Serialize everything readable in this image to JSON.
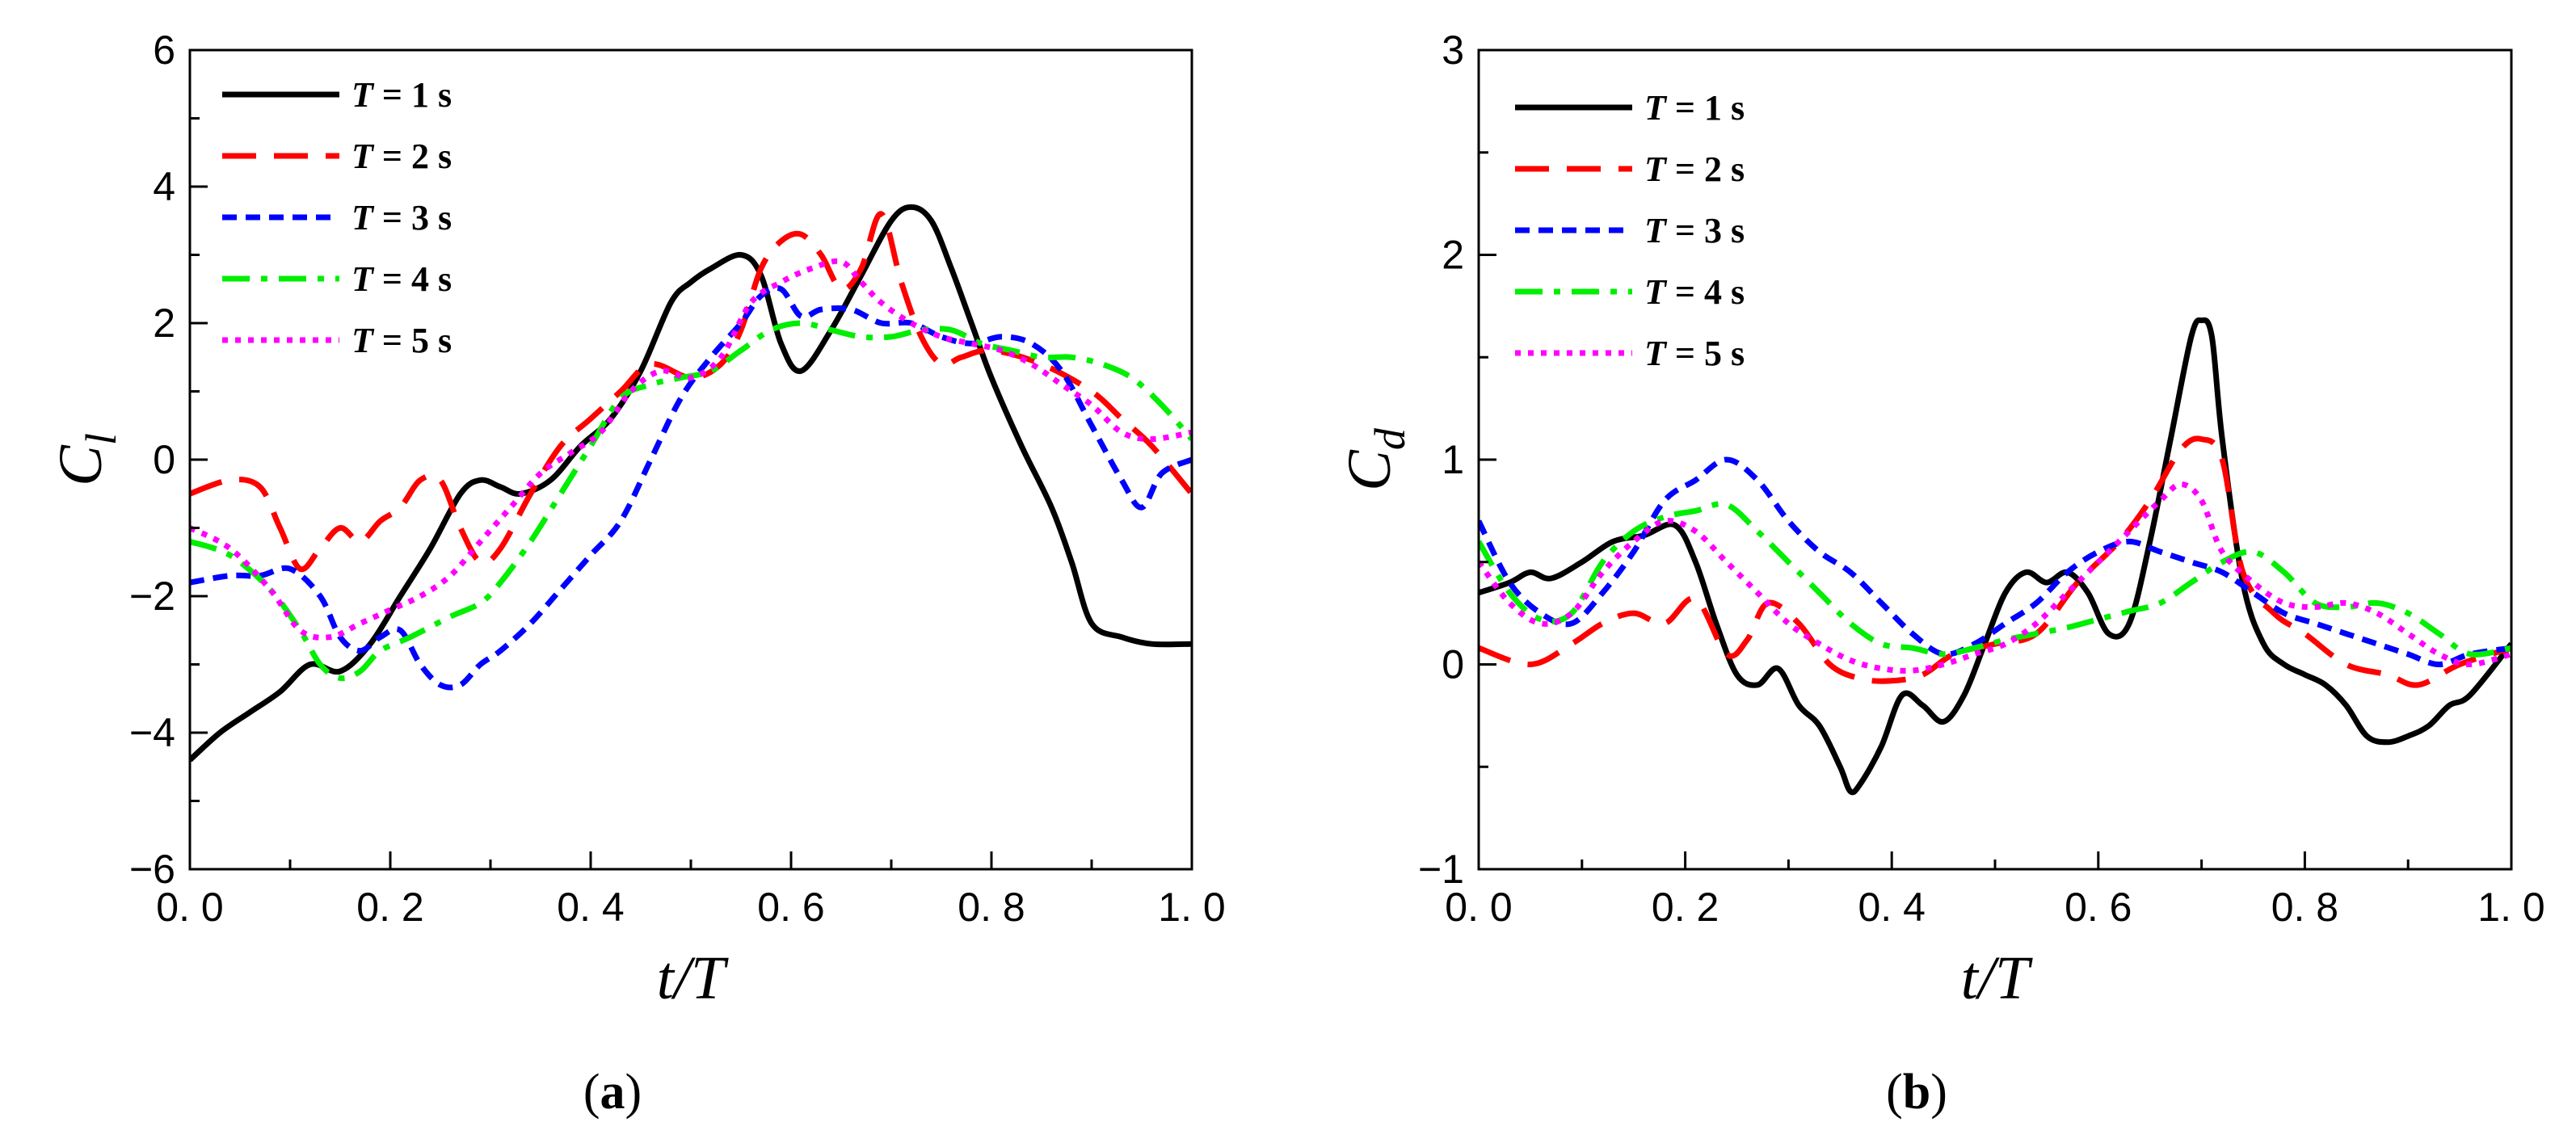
{
  "chart_data": [
    {
      "id": "a",
      "type": "line",
      "panel_label": "a",
      "xlabel": "t/T",
      "ylabel": "C",
      "ylabel_sub": "l",
      "xlim": [
        0.0,
        1.0
      ],
      "ylim": [
        -6,
        6
      ],
      "xticks": [
        0.0,
        0.2,
        0.4,
        0.6,
        0.8,
        1.0
      ],
      "xtick_labels": [
        "0. 0",
        "0. 2",
        "0. 4",
        "0. 6",
        "0. 8",
        "1. 0"
      ],
      "yticks": [
        -6,
        -4,
        -2,
        0,
        2,
        4,
        6
      ],
      "ytick_labels": [
        "−6",
        "−4",
        "−2",
        "0",
        "2",
        "4",
        "6"
      ],
      "legend_position": "top-left",
      "series": [
        {
          "name": "T = 1 s",
          "color": "#000000",
          "dash": "solid",
          "x": [
            0.0,
            0.03,
            0.06,
            0.09,
            0.12,
            0.15,
            0.18,
            0.21,
            0.24,
            0.27,
            0.29,
            0.31,
            0.33,
            0.36,
            0.39,
            0.42,
            0.45,
            0.48,
            0.5,
            0.52,
            0.55,
            0.57,
            0.59,
            0.61,
            0.64,
            0.67,
            0.7,
            0.72,
            0.74,
            0.76,
            0.78,
            0.8,
            0.83,
            0.86,
            0.88,
            0.9,
            0.93,
            0.96,
            1.0
          ],
          "y": [
            -4.4,
            -4.0,
            -3.7,
            -3.4,
            -3.0,
            -3.1,
            -2.7,
            -2.0,
            -1.3,
            -0.5,
            -0.3,
            -0.4,
            -0.5,
            -0.3,
            0.2,
            0.6,
            1.3,
            2.3,
            2.6,
            2.8,
            3.0,
            2.7,
            1.7,
            1.3,
            1.9,
            2.7,
            3.5,
            3.7,
            3.5,
            2.8,
            2.0,
            1.2,
            0.2,
            -0.7,
            -1.5,
            -2.4,
            -2.6,
            -2.7,
            -2.7
          ]
        },
        {
          "name": "T = 2 s",
          "color": "#ff0000",
          "dash": "dashed",
          "x": [
            0.0,
            0.04,
            0.07,
            0.09,
            0.11,
            0.13,
            0.15,
            0.17,
            0.19,
            0.21,
            0.23,
            0.25,
            0.27,
            0.29,
            0.31,
            0.34,
            0.37,
            0.4,
            0.43,
            0.46,
            0.5,
            0.53,
            0.55,
            0.57,
            0.59,
            0.61,
            0.63,
            0.65,
            0.67,
            0.69,
            0.71,
            0.73,
            0.75,
            0.77,
            0.8,
            0.85,
            0.9,
            0.93,
            0.96,
            1.0
          ],
          "y": [
            -0.5,
            -0.3,
            -0.4,
            -1.0,
            -1.6,
            -1.3,
            -1.0,
            -1.2,
            -0.9,
            -0.7,
            -0.3,
            -0.3,
            -1.0,
            -1.5,
            -1.3,
            -0.5,
            0.2,
            0.6,
            1.0,
            1.4,
            1.2,
            1.4,
            1.9,
            2.8,
            3.2,
            3.3,
            3.0,
            2.5,
            2.8,
            3.6,
            2.6,
            1.8,
            1.4,
            1.5,
            1.6,
            1.4,
            1.0,
            0.6,
            0.2,
            -0.5
          ]
        },
        {
          "name": "T = 3 s",
          "color": "#0000ff",
          "dash": "short-dash",
          "x": [
            0.0,
            0.04,
            0.07,
            0.1,
            0.13,
            0.15,
            0.17,
            0.19,
            0.21,
            0.23,
            0.25,
            0.27,
            0.29,
            0.31,
            0.34,
            0.37,
            0.4,
            0.43,
            0.46,
            0.49,
            0.52,
            0.55,
            0.57,
            0.59,
            0.61,
            0.63,
            0.66,
            0.69,
            0.72,
            0.75,
            0.78,
            0.81,
            0.84,
            0.87,
            0.9,
            0.93,
            0.95,
            0.97,
            1.0
          ],
          "y": [
            -1.8,
            -1.7,
            -1.7,
            -1.6,
            -2.0,
            -2.6,
            -2.8,
            -2.6,
            -2.5,
            -3.0,
            -3.3,
            -3.3,
            -3.0,
            -2.8,
            -2.4,
            -1.9,
            -1.4,
            -0.9,
            0.0,
            0.9,
            1.5,
            2.0,
            2.4,
            2.5,
            2.1,
            2.2,
            2.2,
            2.0,
            2.0,
            1.8,
            1.7,
            1.8,
            1.7,
            1.3,
            0.5,
            -0.3,
            -0.7,
            -0.2,
            0.0
          ]
        },
        {
          "name": "T = 4 s",
          "color": "#00ee00",
          "dash": "dash-dot",
          "x": [
            0.0,
            0.04,
            0.08,
            0.11,
            0.13,
            0.15,
            0.17,
            0.19,
            0.22,
            0.26,
            0.29,
            0.31,
            0.34,
            0.37,
            0.4,
            0.43,
            0.46,
            0.49,
            0.52,
            0.55,
            0.58,
            0.61,
            0.64,
            0.67,
            0.7,
            0.73,
            0.76,
            0.79,
            0.82,
            0.85,
            0.88,
            0.91,
            0.94,
            0.97,
            1.0
          ],
          "y": [
            -1.2,
            -1.4,
            -1.9,
            -2.5,
            -3.0,
            -3.2,
            -3.1,
            -2.8,
            -2.6,
            -2.3,
            -2.1,
            -1.8,
            -1.2,
            -0.5,
            0.2,
            0.9,
            1.1,
            1.2,
            1.3,
            1.6,
            1.9,
            2.0,
            1.9,
            1.8,
            1.8,
            1.9,
            1.9,
            1.7,
            1.6,
            1.5,
            1.5,
            1.4,
            1.2,
            0.8,
            0.3
          ]
        },
        {
          "name": "T = 5 s",
          "color": "#ff00ff",
          "dash": "dotted",
          "x": [
            0.0,
            0.04,
            0.08,
            0.11,
            0.14,
            0.17,
            0.2,
            0.23,
            0.26,
            0.29,
            0.32,
            0.35,
            0.38,
            0.41,
            0.44,
            0.47,
            0.5,
            0.53,
            0.56,
            0.59,
            0.62,
            0.65,
            0.67,
            0.69,
            0.72,
            0.75,
            0.78,
            0.81,
            0.84,
            0.87,
            0.9,
            0.93,
            0.96,
            1.0
          ],
          "y": [
            -1.0,
            -1.3,
            -1.9,
            -2.5,
            -2.6,
            -2.4,
            -2.2,
            -2.0,
            -1.7,
            -1.2,
            -0.7,
            -0.2,
            0.1,
            0.4,
            1.0,
            1.3,
            1.2,
            1.5,
            2.3,
            2.6,
            2.8,
            2.9,
            2.6,
            2.3,
            2.0,
            1.8,
            1.7,
            1.6,
            1.4,
            1.1,
            0.8,
            0.4,
            0.3,
            0.4
          ]
        }
      ]
    },
    {
      "id": "b",
      "type": "line",
      "panel_label": "b",
      "xlabel": "t/T",
      "ylabel": "C",
      "ylabel_sub": "d",
      "xlim": [
        0.0,
        1.0
      ],
      "ylim": [
        -1,
        3
      ],
      "xticks": [
        0.0,
        0.2,
        0.4,
        0.6,
        0.8,
        1.0
      ],
      "xtick_labels": [
        "0. 0",
        "0. 2",
        "0. 4",
        "0. 6",
        "0. 8",
        "1. 0"
      ],
      "yticks": [
        -1,
        0,
        1,
        2,
        3
      ],
      "ytick_labels": [
        "−1",
        "0",
        "1",
        "2",
        "3"
      ],
      "legend_position": "top-left",
      "series": [
        {
          "name": "T = 1 s",
          "color": "#000000",
          "dash": "solid",
          "x": [
            0.0,
            0.03,
            0.05,
            0.07,
            0.1,
            0.13,
            0.16,
            0.19,
            0.21,
            0.23,
            0.25,
            0.27,
            0.29,
            0.31,
            0.33,
            0.35,
            0.36,
            0.37,
            0.39,
            0.41,
            0.43,
            0.45,
            0.47,
            0.49,
            0.51,
            0.53,
            0.55,
            0.57,
            0.59,
            0.61,
            0.63,
            0.65,
            0.67,
            0.69,
            0.7,
            0.71,
            0.72,
            0.74,
            0.76,
            0.78,
            0.8,
            0.82,
            0.84,
            0.86,
            0.88,
            0.9,
            0.92,
            0.94,
            0.96,
            1.0
          ],
          "y": [
            0.35,
            0.4,
            0.45,
            0.42,
            0.5,
            0.6,
            0.63,
            0.68,
            0.5,
            0.2,
            -0.05,
            -0.1,
            -0.02,
            -0.2,
            -0.3,
            -0.5,
            -0.62,
            -0.58,
            -0.4,
            -0.15,
            -0.2,
            -0.28,
            -0.15,
            0.1,
            0.35,
            0.45,
            0.4,
            0.45,
            0.35,
            0.15,
            0.2,
            0.6,
            1.1,
            1.6,
            1.68,
            1.6,
            1.1,
            0.4,
            0.1,
            0.0,
            -0.05,
            -0.1,
            -0.2,
            -0.35,
            -0.38,
            -0.35,
            -0.3,
            -0.2,
            -0.15,
            0.1
          ]
        },
        {
          "name": "T = 2 s",
          "color": "#ff0000",
          "dash": "dashed",
          "x": [
            0.0,
            0.05,
            0.09,
            0.12,
            0.15,
            0.18,
            0.21,
            0.24,
            0.26,
            0.28,
            0.31,
            0.34,
            0.37,
            0.4,
            0.43,
            0.46,
            0.5,
            0.54,
            0.58,
            0.62,
            0.65,
            0.68,
            0.7,
            0.72,
            0.74,
            0.77,
            0.8,
            0.84,
            0.88,
            0.91,
            0.95,
            1.0
          ],
          "y": [
            0.08,
            0.0,
            0.1,
            0.2,
            0.25,
            0.2,
            0.32,
            0.05,
            0.12,
            0.3,
            0.2,
            0.0,
            -0.07,
            -0.08,
            -0.05,
            0.05,
            0.1,
            0.15,
            0.4,
            0.6,
            0.8,
            1.05,
            1.1,
            1.0,
            0.45,
            0.25,
            0.15,
            0.0,
            -0.05,
            -0.1,
            0.0,
            0.08
          ]
        },
        {
          "name": "T = 3 s",
          "color": "#0000ff",
          "dash": "short-dash",
          "x": [
            0.0,
            0.03,
            0.06,
            0.09,
            0.12,
            0.15,
            0.18,
            0.21,
            0.24,
            0.27,
            0.3,
            0.33,
            0.36,
            0.39,
            0.42,
            0.45,
            0.48,
            0.51,
            0.54,
            0.57,
            0.6,
            0.63,
            0.66,
            0.69,
            0.72,
            0.75,
            0.78,
            0.81,
            0.84,
            0.87,
            0.9,
            0.93,
            0.96,
            1.0
          ],
          "y": [
            0.7,
            0.4,
            0.25,
            0.2,
            0.35,
            0.55,
            0.8,
            0.9,
            1.0,
            0.9,
            0.7,
            0.55,
            0.45,
            0.3,
            0.15,
            0.05,
            0.1,
            0.2,
            0.3,
            0.45,
            0.55,
            0.6,
            0.55,
            0.5,
            0.45,
            0.35,
            0.25,
            0.2,
            0.15,
            0.1,
            0.05,
            0.0,
            0.05,
            0.08
          ]
        },
        {
          "name": "T = 4 s",
          "color": "#00ee00",
          "dash": "dash-dot",
          "x": [
            0.0,
            0.03,
            0.06,
            0.09,
            0.12,
            0.15,
            0.18,
            0.21,
            0.24,
            0.27,
            0.3,
            0.33,
            0.36,
            0.39,
            0.42,
            0.45,
            0.48,
            0.51,
            0.54,
            0.57,
            0.6,
            0.63,
            0.66,
            0.69,
            0.72,
            0.75,
            0.78,
            0.81,
            0.84,
            0.87,
            0.9,
            0.93,
            0.96,
            1.0
          ],
          "y": [
            0.6,
            0.35,
            0.22,
            0.25,
            0.5,
            0.65,
            0.72,
            0.75,
            0.78,
            0.65,
            0.5,
            0.35,
            0.2,
            0.1,
            0.08,
            0.05,
            0.08,
            0.12,
            0.15,
            0.18,
            0.22,
            0.26,
            0.3,
            0.4,
            0.5,
            0.55,
            0.45,
            0.3,
            0.28,
            0.3,
            0.25,
            0.15,
            0.05,
            0.08
          ]
        },
        {
          "name": "T = 5 s",
          "color": "#ff00ff",
          "dash": "dotted",
          "x": [
            0.0,
            0.03,
            0.06,
            0.09,
            0.12,
            0.15,
            0.18,
            0.21,
            0.24,
            0.27,
            0.3,
            0.33,
            0.36,
            0.39,
            0.42,
            0.45,
            0.48,
            0.51,
            0.54,
            0.57,
            0.6,
            0.63,
            0.66,
            0.68,
            0.7,
            0.72,
            0.75,
            0.78,
            0.81,
            0.84,
            0.87,
            0.9,
            0.93,
            0.96,
            1.0
          ],
          "y": [
            0.5,
            0.3,
            0.2,
            0.25,
            0.45,
            0.6,
            0.7,
            0.65,
            0.5,
            0.35,
            0.2,
            0.1,
            0.02,
            -0.02,
            -0.03,
            0.0,
            0.05,
            0.1,
            0.2,
            0.35,
            0.5,
            0.65,
            0.8,
            0.88,
            0.8,
            0.55,
            0.4,
            0.3,
            0.28,
            0.3,
            0.25,
            0.15,
            0.05,
            0.0,
            0.05
          ]
        }
      ]
    }
  ]
}
